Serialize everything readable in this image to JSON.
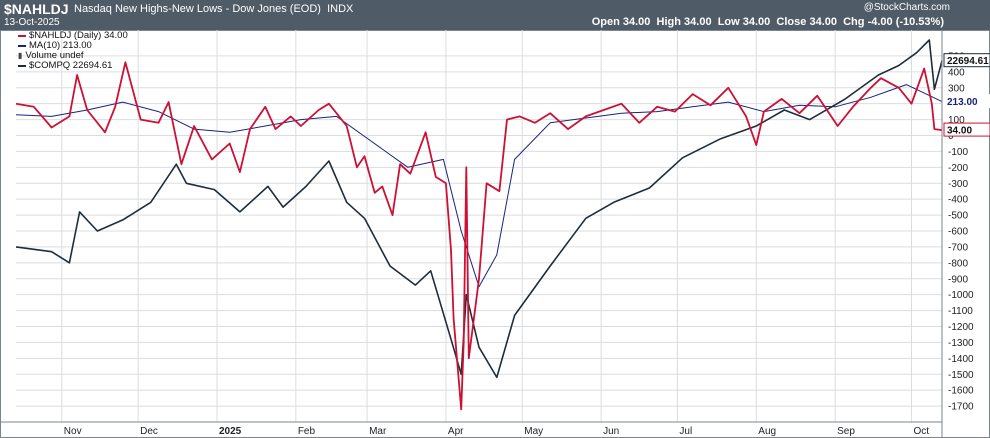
{
  "header": {
    "symbol": "$NAHLDJ",
    "description": "Nasdaq New Highs-New Lows - Dow Jones (EOD)",
    "exchange": "INDX",
    "date": "13-Oct-2025",
    "brand": "@StockCharts.com",
    "ohlc": {
      "open_label": "Open",
      "open": "34.00",
      "high_label": "High",
      "high": "34.00",
      "low_label": "Low",
      "low": "34.00",
      "close_label": "Close",
      "close": "34.00",
      "chg_label": "Chg",
      "chg": "-4.00 (-10.53%)"
    }
  },
  "legend": {
    "nahldj": "$NAHLDJ (Daily) 34.00",
    "ma": "MA(10) 213.00",
    "volume": "Volume undef",
    "compq": "$COMPQ 22694.61"
  },
  "badges": {
    "compq_value": "22694.61",
    "ma_value": "213.00",
    "close_value": "34.00"
  },
  "colors": {
    "nahldj": "#cc1133",
    "ma": "#1a237e",
    "compq": "#1f2d3a",
    "header_bg": "#4f5b66",
    "grid": "#d9dde2"
  },
  "chart_data": {
    "type": "line",
    "title": "$NAHLDJ",
    "ylabel": "",
    "ylim": [
      -1800,
      600
    ],
    "y_ticks": [
      500,
      400,
      300,
      200,
      100,
      0,
      -100,
      -200,
      -300,
      -400,
      -500,
      -600,
      -700,
      -800,
      -900,
      -1000,
      -1100,
      -1200,
      -1300,
      -1400,
      -1500,
      -1600,
      -1700
    ],
    "x_month_labels": [
      "Nov",
      "Dec",
      "2025",
      "Feb",
      "Mar",
      "Apr",
      "May",
      "Jun",
      "Jul",
      "Aug",
      "Sep",
      "Oct"
    ],
    "x_month_starts": [
      "2024-11-01",
      "2024-12-01",
      "2025-01-01",
      "2025-02-01",
      "2025-03-01",
      "2025-04-01",
      "2025-05-01",
      "2025-06-01",
      "2025-07-01",
      "2025-08-01",
      "2025-09-01",
      "2025-10-01"
    ],
    "x_range": [
      "2024-10-14",
      "2025-10-13"
    ],
    "grid": true,
    "series": [
      {
        "name": "$NAHLDJ (Daily)",
        "points": [
          [
            "2024-10-14",
            200
          ],
          [
            "2024-10-21",
            180
          ],
          [
            "2024-10-28",
            50
          ],
          [
            "2024-11-04",
            120
          ],
          [
            "2024-11-07",
            380
          ],
          [
            "2024-11-11",
            160
          ],
          [
            "2024-11-18",
            20
          ],
          [
            "2024-11-22",
            180
          ],
          [
            "2024-11-26",
            460
          ],
          [
            "2024-12-02",
            100
          ],
          [
            "2024-12-09",
            80
          ],
          [
            "2024-12-13",
            210
          ],
          [
            "2024-12-18",
            -180
          ],
          [
            "2024-12-23",
            60
          ],
          [
            "2024-12-30",
            -150
          ],
          [
            "2025-01-06",
            -50
          ],
          [
            "2025-01-10",
            -230
          ],
          [
            "2025-01-14",
            40
          ],
          [
            "2025-01-20",
            180
          ],
          [
            "2025-01-24",
            40
          ],
          [
            "2025-01-30",
            120
          ],
          [
            "2025-02-03",
            60
          ],
          [
            "2025-02-10",
            160
          ],
          [
            "2025-02-14",
            200
          ],
          [
            "2025-02-21",
            60
          ],
          [
            "2025-02-25",
            -200
          ],
          [
            "2025-02-28",
            -130
          ],
          [
            "2025-03-04",
            -360
          ],
          [
            "2025-03-07",
            -320
          ],
          [
            "2025-03-11",
            -500
          ],
          [
            "2025-03-14",
            -180
          ],
          [
            "2025-03-18",
            -240
          ],
          [
            "2025-03-24",
            20
          ],
          [
            "2025-03-28",
            -260
          ],
          [
            "2025-04-01",
            -300
          ],
          [
            "2025-04-03",
            -720
          ],
          [
            "2025-04-04",
            -1150
          ],
          [
            "2025-04-07",
            -1720
          ],
          [
            "2025-04-08",
            -1300
          ],
          [
            "2025-04-09",
            -200
          ],
          [
            "2025-04-10",
            -1400
          ],
          [
            "2025-04-14",
            -900
          ],
          [
            "2025-04-17",
            -300
          ],
          [
            "2025-04-22",
            -350
          ],
          [
            "2025-04-25",
            100
          ],
          [
            "2025-04-30",
            120
          ],
          [
            "2025-05-06",
            80
          ],
          [
            "2025-05-12",
            140
          ],
          [
            "2025-05-19",
            40
          ],
          [
            "2025-05-26",
            120
          ],
          [
            "2025-06-02",
            160
          ],
          [
            "2025-06-09",
            200
          ],
          [
            "2025-06-16",
            80
          ],
          [
            "2025-06-23",
            180
          ],
          [
            "2025-06-30",
            150
          ],
          [
            "2025-07-07",
            260
          ],
          [
            "2025-07-14",
            190
          ],
          [
            "2025-07-21",
            300
          ],
          [
            "2025-07-28",
            120
          ],
          [
            "2025-08-01",
            -60
          ],
          [
            "2025-08-04",
            150
          ],
          [
            "2025-08-11",
            230
          ],
          [
            "2025-08-18",
            140
          ],
          [
            "2025-08-25",
            250
          ],
          [
            "2025-09-02",
            60
          ],
          [
            "2025-09-08",
            180
          ],
          [
            "2025-09-15",
            300
          ],
          [
            "2025-09-19",
            360
          ],
          [
            "2025-09-26",
            300
          ],
          [
            "2025-10-01",
            200
          ],
          [
            "2025-10-06",
            420
          ],
          [
            "2025-10-09",
            200
          ],
          [
            "2025-10-10",
            40
          ],
          [
            "2025-10-13",
            34
          ]
        ]
      },
      {
        "name": "MA(10)",
        "points": [
          [
            "2024-10-14",
            130
          ],
          [
            "2024-10-28",
            120
          ],
          [
            "2024-11-11",
            160
          ],
          [
            "2024-11-25",
            210
          ],
          [
            "2024-12-09",
            150
          ],
          [
            "2024-12-23",
            40
          ],
          [
            "2025-01-06",
            20
          ],
          [
            "2025-01-20",
            60
          ],
          [
            "2025-02-03",
            100
          ],
          [
            "2025-02-17",
            120
          ],
          [
            "2025-03-03",
            -40
          ],
          [
            "2025-03-17",
            -200
          ],
          [
            "2025-03-31",
            -150
          ],
          [
            "2025-04-07",
            -600
          ],
          [
            "2025-04-14",
            -950
          ],
          [
            "2025-04-21",
            -750
          ],
          [
            "2025-04-28",
            -150
          ],
          [
            "2025-05-12",
            80
          ],
          [
            "2025-05-26",
            110
          ],
          [
            "2025-06-09",
            140
          ],
          [
            "2025-06-23",
            150
          ],
          [
            "2025-07-07",
            180
          ],
          [
            "2025-07-21",
            210
          ],
          [
            "2025-08-04",
            150
          ],
          [
            "2025-08-18",
            190
          ],
          [
            "2025-09-01",
            180
          ],
          [
            "2025-09-15",
            240
          ],
          [
            "2025-09-29",
            320
          ],
          [
            "2025-10-13",
            213
          ]
        ]
      },
      {
        "name": "$COMPQ",
        "points": [
          [
            "2024-10-14",
            -700
          ],
          [
            "2024-10-28",
            -730
          ],
          [
            "2024-11-04",
            -800
          ],
          [
            "2024-11-08",
            -480
          ],
          [
            "2024-11-15",
            -600
          ],
          [
            "2024-11-25",
            -530
          ],
          [
            "2024-12-06",
            -420
          ],
          [
            "2024-12-16",
            -180
          ],
          [
            "2024-12-20",
            -300
          ],
          [
            "2024-12-31",
            -340
          ],
          [
            "2025-01-10",
            -480
          ],
          [
            "2025-01-21",
            -320
          ],
          [
            "2025-01-27",
            -450
          ],
          [
            "2025-02-05",
            -320
          ],
          [
            "2025-02-14",
            -160
          ],
          [
            "2025-02-21",
            -420
          ],
          [
            "2025-02-28",
            -520
          ],
          [
            "2025-03-10",
            -820
          ],
          [
            "2025-03-20",
            -940
          ],
          [
            "2025-03-26",
            -850
          ],
          [
            "2025-04-03",
            -1280
          ],
          [
            "2025-04-07",
            -1500
          ],
          [
            "2025-04-09",
            -1000
          ],
          [
            "2025-04-14",
            -1330
          ],
          [
            "2025-04-21",
            -1520
          ],
          [
            "2025-04-28",
            -1130
          ],
          [
            "2025-05-12",
            -820
          ],
          [
            "2025-05-26",
            -520
          ],
          [
            "2025-06-06",
            -420
          ],
          [
            "2025-06-20",
            -330
          ],
          [
            "2025-07-03",
            -140
          ],
          [
            "2025-07-18",
            -20
          ],
          [
            "2025-08-01",
            60
          ],
          [
            "2025-08-12",
            160
          ],
          [
            "2025-08-22",
            100
          ],
          [
            "2025-09-05",
            230
          ],
          [
            "2025-09-18",
            380
          ],
          [
            "2025-09-26",
            440
          ],
          [
            "2025-10-03",
            520
          ],
          [
            "2025-10-08",
            600
          ],
          [
            "2025-10-10",
            290
          ],
          [
            "2025-10-13",
            470
          ]
        ]
      }
    ]
  }
}
